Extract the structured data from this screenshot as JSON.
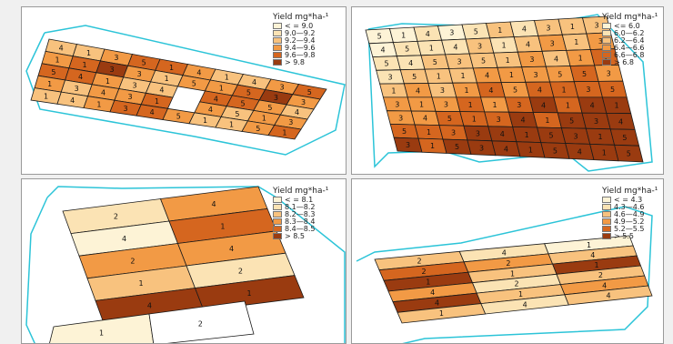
{
  "legend_unit": "Yield mg*ha-¹",
  "panels": [
    {
      "legend": [
        {
          "label": "< = 9.0",
          "color": "#fdf3d6"
        },
        {
          "label": "9.0—9.2",
          "color": "#fbe3b4"
        },
        {
          "label": "9.2—9.4",
          "color": "#f8c27e"
        },
        {
          "label": "9.4—9.6",
          "color": "#f29a45"
        },
        {
          "label": "9.6—9.8",
          "color": "#d5661f"
        },
        {
          "label": "> 9.8",
          "color": "#9a3b10"
        }
      ],
      "labels": [
        "4",
        "1",
        "3",
        "5",
        "1",
        "4",
        "1",
        "4",
        "3",
        "5",
        "1",
        "1",
        "3",
        "3",
        "1",
        "5",
        "1",
        "5",
        "3",
        "3",
        "5",
        "4",
        "1",
        "3",
        "4",
        "4",
        "5",
        "5",
        "4",
        "1",
        "3",
        "4",
        "3",
        "1",
        "4",
        "5",
        "1",
        "3",
        "1",
        "4",
        "1",
        "3",
        "4",
        "5",
        "1",
        "1",
        "5",
        "1"
      ]
    },
    {
      "legend": [
        {
          "label": "<= 6.0",
          "color": "#fdf3d6"
        },
        {
          "label": "6.0—6.2",
          "color": "#fbe3b4"
        },
        {
          "label": "6.2—6.4",
          "color": "#f8c27e"
        },
        {
          "label": "6.4—6.6",
          "color": "#f29a45"
        },
        {
          "label": "6.6—6.8",
          "color": "#d5661f"
        },
        {
          "label": "> 6.8",
          "color": "#9a3b10"
        }
      ],
      "labels": [
        "5",
        "1",
        "4",
        "3",
        "5",
        "1",
        "4",
        "3",
        "1",
        "3",
        "4",
        "5",
        "1",
        "4",
        "3",
        "1",
        "4",
        "3",
        "1",
        "3",
        "5",
        "4",
        "5",
        "3",
        "5",
        "1",
        "3",
        "4",
        "1",
        "5",
        "3",
        "5",
        "1",
        "1",
        "4",
        "1",
        "3",
        "5",
        "5",
        "3",
        "1",
        "4",
        "3",
        "1",
        "4",
        "5",
        "4",
        "1",
        "3",
        "5",
        "3",
        "1",
        "3",
        "1",
        "1",
        "3",
        "4",
        "1",
        "4",
        "1",
        "3",
        "4",
        "5",
        "1",
        "3",
        "4",
        "1",
        "5",
        "3",
        "4",
        "5",
        "1",
        "3",
        "3",
        "4",
        "1",
        "5",
        "3",
        "1",
        "5",
        "3",
        "1",
        "5",
        "3",
        "4",
        "1",
        "5",
        "4",
        "1",
        "5"
      ]
    },
    {
      "legend": [
        {
          "label": "< = 8.1",
          "color": "#fdf3d6"
        },
        {
          "label": "8.1—8.2",
          "color": "#fbe3b4"
        },
        {
          "label": "8.2—8.3",
          "color": "#f8c27e"
        },
        {
          "label": "8.3—8.4",
          "color": "#f29a45"
        },
        {
          "label": "8.4—8.5",
          "color": "#d5661f"
        },
        {
          "label": "> 8.5",
          "color": "#9a3b10"
        }
      ],
      "labels": [
        "2",
        "4",
        "4",
        "1",
        "2",
        "4",
        "1",
        "2",
        "4",
        "1",
        "1",
        "2"
      ]
    },
    {
      "legend": [
        {
          "label": "< = 4.3",
          "color": "#fdf3d6"
        },
        {
          "label": "4.3—4.6",
          "color": "#fbe3b4"
        },
        {
          "label": "4.6—4.9",
          "color": "#f8c27e"
        },
        {
          "label": "4.9—5.2",
          "color": "#f29a45"
        },
        {
          "label": "5.2—5.5",
          "color": "#d5661f"
        },
        {
          "label": "> 5.5",
          "color": "#9a3b10"
        }
      ],
      "labels": [
        "2",
        "4",
        "1",
        "2",
        "2",
        "4",
        "1",
        "1",
        "1",
        "4",
        "2",
        "2",
        "4",
        "1",
        "4",
        "1",
        "4",
        "4",
        "2",
        "1"
      ]
    }
  ]
}
